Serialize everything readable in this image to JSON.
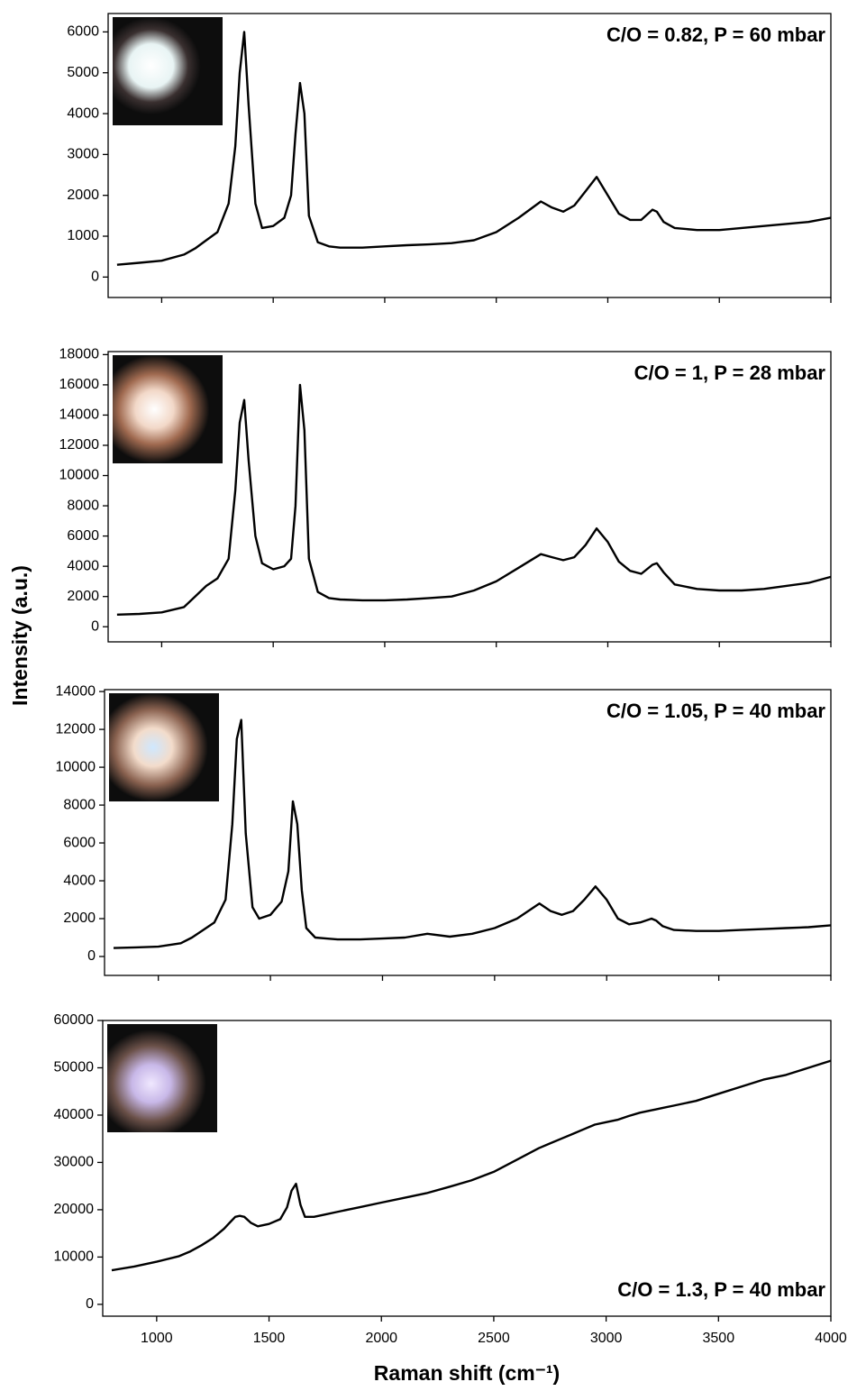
{
  "chart_data": [
    {
      "type": "line",
      "annotation": "C/O = 0.82, P = 60 mbar",
      "annotation_corner": "top-right",
      "color": "#000000",
      "x": [
        800,
        900,
        1000,
        1100,
        1150,
        1200,
        1250,
        1300,
        1330,
        1350,
        1370,
        1390,
        1420,
        1450,
        1500,
        1550,
        1580,
        1600,
        1620,
        1640,
        1660,
        1700,
        1750,
        1800,
        1900,
        2000,
        2100,
        2200,
        2300,
        2400,
        2500,
        2600,
        2700,
        2750,
        2800,
        2850,
        2900,
        2950,
        3000,
        3050,
        3100,
        3150,
        3200,
        3220,
        3250,
        3300,
        3400,
        3500,
        3600,
        3700,
        3800,
        3900,
        4000
      ],
      "values": [
        300,
        350,
        400,
        550,
        700,
        900,
        1100,
        1800,
        3200,
        5000,
        6000,
        4200,
        1800,
        1200,
        1250,
        1450,
        2000,
        3500,
        4750,
        4000,
        1500,
        850,
        750,
        720,
        720,
        750,
        780,
        800,
        830,
        900,
        1100,
        1450,
        1850,
        1700,
        1600,
        1750,
        2100,
        2450,
        2000,
        1550,
        1400,
        1400,
        1650,
        1600,
        1350,
        1200,
        1150,
        1150,
        1200,
        1250,
        1300,
        1350,
        1450
      ],
      "xlim": [
        760,
        4000
      ],
      "ylim": [
        -500,
        6450
      ],
      "yticks": [
        0,
        1000,
        2000,
        3000,
        4000,
        5000,
        6000
      ]
    },
    {
      "type": "line",
      "annotation": "C/O = 1, P = 28 mbar",
      "annotation_corner": "top-right",
      "color": "#000000",
      "ylabel": "Intensity (a.u.)",
      "x": [
        800,
        900,
        1000,
        1100,
        1150,
        1200,
        1250,
        1300,
        1330,
        1350,
        1370,
        1390,
        1420,
        1450,
        1500,
        1550,
        1580,
        1600,
        1620,
        1640,
        1660,
        1700,
        1750,
        1800,
        1900,
        2000,
        2100,
        2200,
        2300,
        2400,
        2500,
        2600,
        2700,
        2750,
        2800,
        2850,
        2900,
        2950,
        3000,
        3050,
        3100,
        3150,
        3200,
        3220,
        3250,
        3300,
        3400,
        3500,
        3600,
        3700,
        3800,
        3900,
        4000
      ],
      "values": [
        800,
        850,
        950,
        1300,
        2000,
        2700,
        3200,
        4500,
        9000,
        13500,
        15000,
        11000,
        6000,
        4200,
        3800,
        4000,
        4500,
        8000,
        16000,
        13000,
        4500,
        2300,
        1900,
        1800,
        1750,
        1750,
        1800,
        1900,
        2000,
        2400,
        3000,
        3900,
        4800,
        4600,
        4400,
        4600,
        5400,
        6500,
        5600,
        4300,
        3700,
        3500,
        4100,
        4200,
        3600,
        2800,
        2500,
        2400,
        2400,
        2500,
        2700,
        2900,
        3300
      ],
      "xlim": [
        760,
        4000
      ],
      "ylim": [
        -1000,
        18200
      ],
      "yticks": [
        0,
        2000,
        4000,
        6000,
        8000,
        10000,
        12000,
        14000,
        16000,
        18000
      ]
    },
    {
      "type": "line",
      "annotation": "C/O = 1.05, P = 40 mbar",
      "annotation_corner": "top-right",
      "color": "#000000",
      "x": [
        800,
        900,
        1000,
        1100,
        1150,
        1200,
        1250,
        1300,
        1330,
        1350,
        1370,
        1390,
        1420,
        1450,
        1500,
        1550,
        1580,
        1600,
        1620,
        1640,
        1660,
        1700,
        1750,
        1800,
        1900,
        2000,
        2100,
        2200,
        2300,
        2400,
        2500,
        2600,
        2700,
        2750,
        2800,
        2850,
        2900,
        2950,
        3000,
        3050,
        3100,
        3150,
        3200,
        3220,
        3250,
        3300,
        3400,
        3500,
        3600,
        3700,
        3800,
        3900,
        4000
      ],
      "values": [
        450,
        480,
        520,
        700,
        1000,
        1400,
        1800,
        3000,
        7000,
        11500,
        12500,
        6500,
        2600,
        2000,
        2200,
        2900,
        4500,
        8200,
        7000,
        3500,
        1500,
        1000,
        950,
        900,
        900,
        950,
        1000,
        1200,
        1050,
        1200,
        1500,
        2000,
        2800,
        2400,
        2200,
        2400,
        3000,
        3700,
        3000,
        2000,
        1700,
        1800,
        2000,
        1900,
        1600,
        1400,
        1350,
        1350,
        1400,
        1450,
        1500,
        1550,
        1650
      ],
      "xlim": [
        760,
        4000
      ],
      "ylim": [
        -1000,
        14100
      ],
      "yticks": [
        0,
        2000,
        4000,
        6000,
        8000,
        10000,
        12000,
        14000
      ]
    },
    {
      "type": "line",
      "annotation": "C/O = 1.3, P = 40 mbar",
      "annotation_corner": "bottom-right",
      "color": "#000000",
      "xlabel": "Raman shift (cm⁻¹)",
      "x": [
        800,
        900,
        1000,
        1100,
        1150,
        1200,
        1250,
        1300,
        1330,
        1350,
        1370,
        1390,
        1420,
        1450,
        1500,
        1550,
        1580,
        1600,
        1620,
        1640,
        1660,
        1700,
        1750,
        1800,
        1900,
        2000,
        2100,
        2200,
        2300,
        2400,
        2500,
        2600,
        2700,
        2750,
        2800,
        2850,
        2900,
        2950,
        3000,
        3050,
        3100,
        3150,
        3200,
        3220,
        3250,
        3300,
        3400,
        3500,
        3600,
        3700,
        3800,
        3900,
        4000
      ],
      "values": [
        7200,
        8000,
        9000,
        10200,
        11200,
        12500,
        14000,
        16000,
        17500,
        18500,
        18700,
        18500,
        17200,
        16500,
        17000,
        18000,
        20500,
        24000,
        25500,
        21000,
        18500,
        18500,
        19000,
        19500,
        20500,
        21500,
        22500,
        23500,
        24800,
        26200,
        28000,
        30500,
        33000,
        34000,
        35000,
        36000,
        37000,
        38000,
        38500,
        39000,
        39800,
        40500,
        41000,
        41200,
        41500,
        42000,
        43000,
        44500,
        46000,
        47500,
        48500,
        50000,
        51500
      ],
      "xlim": [
        760,
        4000
      ],
      "ylim": [
        -2500,
        60000
      ],
      "yticks": [
        0,
        10000,
        20000,
        30000,
        40000,
        50000,
        60000
      ],
      "xticks": [
        1000,
        1500,
        2000,
        2500,
        3000,
        3500,
        4000
      ]
    }
  ]
}
